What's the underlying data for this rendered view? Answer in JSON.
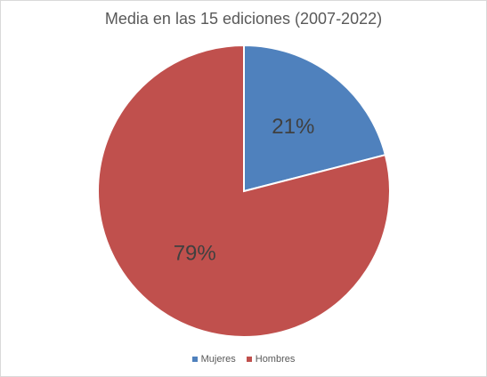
{
  "chart_data": {
    "type": "pie",
    "title": "Media en las 15 ediciones (2007-2022)",
    "slices": [
      {
        "name": "Mujeres",
        "value": 21,
        "label": "21%",
        "color": "#4f81bd"
      },
      {
        "name": "Hombres",
        "value": 79,
        "label": "79%",
        "color": "#c0504d"
      }
    ],
    "legend": {
      "placement": "bottom",
      "entries": [
        "Mujeres",
        "Hombres"
      ]
    }
  }
}
